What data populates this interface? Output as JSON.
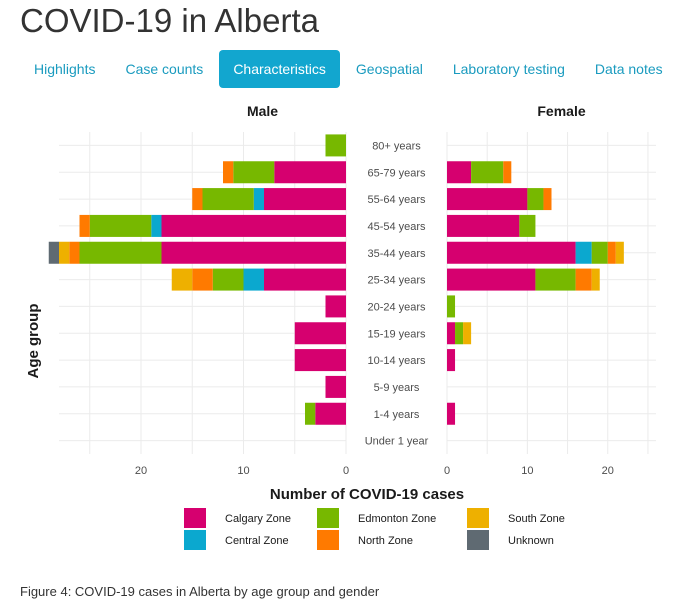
{
  "page": {
    "title": "COVID-19 in Alberta",
    "caption": "Figure 4: COVID-19 cases in Alberta by age group and gender"
  },
  "tabs": [
    {
      "label": "Highlights",
      "active": false
    },
    {
      "label": "Case counts",
      "active": false
    },
    {
      "label": "Characteristics",
      "active": true
    },
    {
      "label": "Geospatial",
      "active": false
    },
    {
      "label": "Laboratory testing",
      "active": false
    },
    {
      "label": "Data notes",
      "active": false
    }
  ],
  "chart_data": {
    "type": "bar",
    "orientation": "horizontal-diverging",
    "panels": [
      "Male",
      "Female"
    ],
    "xlabel": "Number of COVID-19 cases",
    "ylabel": "Age group",
    "xlim_male": [
      0,
      28
    ],
    "xlim_female": [
      0,
      26
    ],
    "male_ticks": [
      20,
      10,
      0
    ],
    "female_ticks": [
      0,
      10,
      20
    ],
    "categories": [
      "80+ years",
      "65-79 years",
      "55-64 years",
      "45-54 years",
      "35-44 years",
      "25-34 years",
      "20-24 years",
      "15-19 years",
      "10-14 years",
      "5-9 years",
      "1-4 years",
      "Under 1 year"
    ],
    "zones": [
      {
        "name": "Calgary Zone",
        "color": "#d6006f"
      },
      {
        "name": "Edmonton Zone",
        "color": "#77b800"
      },
      {
        "name": "South Zone",
        "color": "#eeb000"
      },
      {
        "name": "Central Zone",
        "color": "#0ba8cf"
      },
      {
        "name": "North Zone",
        "color": "#ff7a00"
      },
      {
        "name": "Unknown",
        "color": "#5f6a72"
      }
    ],
    "stack_order": [
      "Calgary Zone",
      "Central Zone",
      "Edmonton Zone",
      "North Zone",
      "South Zone",
      "Unknown"
    ],
    "male": {
      "Calgary Zone": [
        0,
        7,
        8,
        18,
        18,
        8,
        2,
        5,
        5,
        2,
        3,
        0
      ],
      "Central Zone": [
        0,
        0,
        1,
        1,
        0,
        2,
        0,
        0,
        0,
        0,
        0,
        0
      ],
      "Edmonton Zone": [
        2,
        4,
        5,
        6,
        8,
        3,
        0,
        0,
        0,
        0,
        1,
        0
      ],
      "North Zone": [
        0,
        1,
        1,
        1,
        1,
        2,
        0,
        0,
        0,
        0,
        0,
        0
      ],
      "South Zone": [
        0,
        0,
        0,
        0,
        1,
        2,
        0,
        0,
        0,
        0,
        0,
        0
      ],
      "Unknown": [
        0,
        0,
        0,
        0,
        1,
        0,
        0,
        0,
        0,
        0,
        0,
        0
      ]
    },
    "female": {
      "Calgary Zone": [
        0,
        3,
        10,
        9,
        16,
        11,
        0,
        1,
        1,
        0,
        1,
        0
      ],
      "Central Zone": [
        0,
        0,
        0,
        0,
        2,
        0,
        0,
        0,
        0,
        0,
        0,
        0
      ],
      "Edmonton Zone": [
        0,
        4,
        2,
        2,
        2,
        5,
        1,
        1,
        0,
        0,
        0,
        0
      ],
      "North Zone": [
        0,
        1,
        1,
        0,
        1,
        2,
        0,
        0,
        0,
        0,
        0,
        0
      ],
      "South Zone": [
        0,
        0,
        0,
        0,
        1,
        1,
        0,
        1,
        0,
        0,
        0,
        0
      ],
      "Unknown": [
        0,
        0,
        0,
        0,
        0,
        0,
        0,
        0,
        0,
        0,
        0,
        0
      ]
    }
  }
}
